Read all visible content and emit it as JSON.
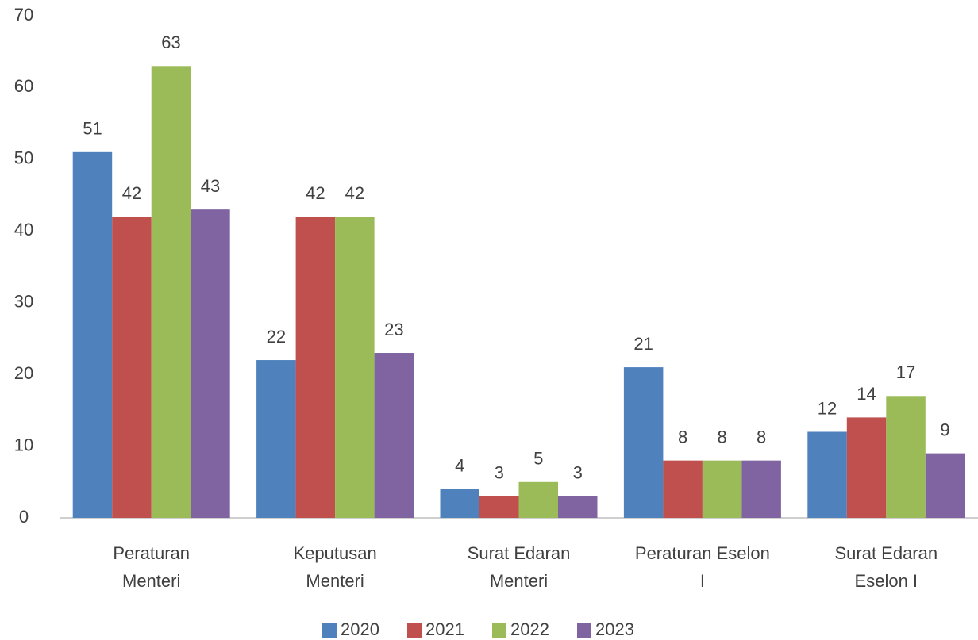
{
  "chart_data": {
    "type": "bar",
    "categories": [
      "Peraturan\nMenteri",
      "Keputusan\nMenteri",
      "Surat Edaran\nMenteri",
      "Peraturan Eselon\nI",
      "Surat Edaran\nEselon I"
    ],
    "series": [
      {
        "name": "2020",
        "color": "#4f81bd",
        "values": [
          51,
          22,
          4,
          21,
          12
        ]
      },
      {
        "name": "2021",
        "color": "#c0504d",
        "values": [
          42,
          42,
          3,
          8,
          14
        ]
      },
      {
        "name": "2022",
        "color": "#9bbb59",
        "values": [
          63,
          42,
          5,
          8,
          17
        ]
      },
      {
        "name": "2023",
        "color": "#8064a2",
        "values": [
          43,
          23,
          3,
          8,
          9
        ]
      }
    ],
    "ylim": [
      0,
      70
    ],
    "yticks": [
      0,
      10,
      20,
      30,
      40,
      50,
      60,
      70
    ],
    "grid": false,
    "legend": "bottom"
  }
}
